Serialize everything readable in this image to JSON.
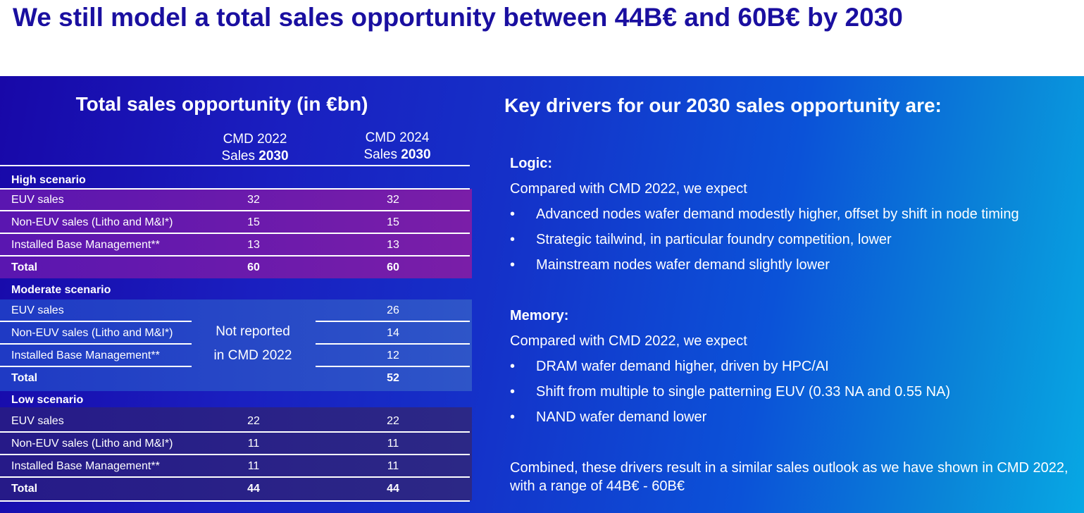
{
  "headline": "We still model a total sales opportunity between 44B€ and 60B€ by 2030",
  "left": {
    "title": "Total sales opportunity (in €bn)",
    "col1": {
      "line1": "CMD 2022",
      "line2a": "Sales ",
      "line2b": "2030"
    },
    "col2": {
      "line1": "CMD 2024",
      "line2a": "Sales ",
      "line2b": "2030"
    },
    "high": {
      "label": "High scenario",
      "rows": [
        {
          "label": "EUV sales",
          "v1": "32",
          "v2": "32"
        },
        {
          "label": "Non-EUV sales (Litho and M&I*)",
          "v1": "15",
          "v2": "15"
        },
        {
          "label": "Installed Base Management**",
          "v1": "13",
          "v2": "13"
        },
        {
          "label": "Total",
          "v1": "60",
          "v2": "60"
        }
      ]
    },
    "moderate": {
      "label": "Moderate scenario",
      "not_reported_1": "Not reported",
      "not_reported_2": "in CMD 2022",
      "rows": [
        {
          "label": "EUV sales",
          "v2": "26"
        },
        {
          "label": "Non-EUV sales (Litho and M&I*)",
          "v2": "14"
        },
        {
          "label": "Installed Base Management**",
          "v2": "12"
        },
        {
          "label": "Total",
          "v2": "52"
        }
      ]
    },
    "low": {
      "label": "Low scenario",
      "rows": [
        {
          "label": "EUV sales",
          "v1": "22",
          "v2": "22"
        },
        {
          "label": "Non-EUV sales (Litho and M&I*)",
          "v1": "11",
          "v2": "11"
        },
        {
          "label": "Installed Base Management**",
          "v1": "11",
          "v2": "11"
        },
        {
          "label": "Total",
          "v1": "44",
          "v2": "44"
        }
      ]
    }
  },
  "right": {
    "title": "Key drivers for our 2030 sales opportunity are:",
    "logic": {
      "heading": "Logic:",
      "intro": "Compared with CMD 2022, we expect",
      "bullets": [
        "Advanced nodes wafer demand modestly higher, offset by shift in node timing",
        "Strategic tailwind, in particular foundry competition, lower",
        "Mainstream nodes wafer demand slightly lower"
      ]
    },
    "memory": {
      "heading": "Memory:",
      "intro": "Compared with CMD 2022, we expect",
      "bullets": [
        "DRAM wafer demand higher, driven by HPC/AI",
        "Shift from multiple to single patterning EUV (0.33 NA and 0.55 NA)",
        "NAND wafer demand lower"
      ]
    },
    "bullet_symbol": "•",
    "combined": "Combined, these drivers result in a similar sales outlook as we have shown in CMD 2022, with a range of 44B€ - 60B€"
  },
  "colors": {
    "headline": "#1a0fa0",
    "panel_start": "#1808a8",
    "panel_end": "#07a8e4",
    "high_band": "#7a1ea8",
    "moderate_band": "#2e55c8",
    "low_band": "#2c2886"
  }
}
